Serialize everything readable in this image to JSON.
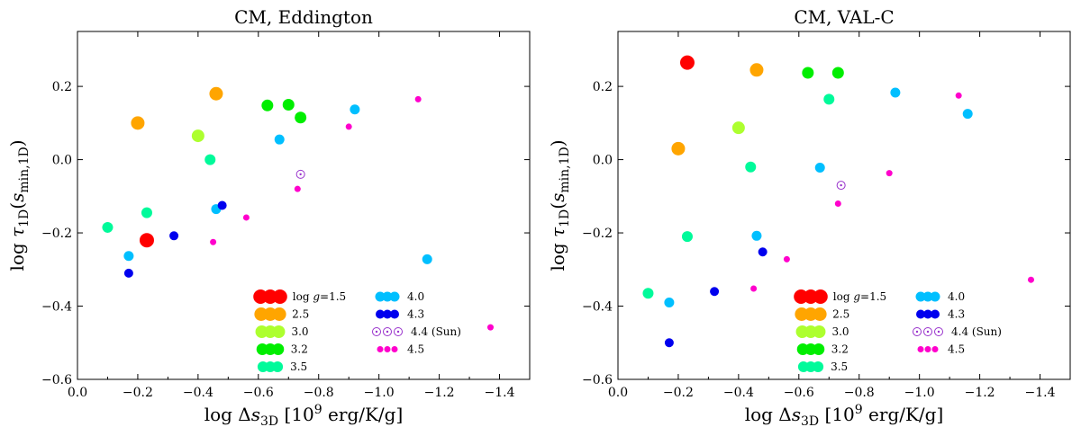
{
  "chart_data": [
    {
      "type": "scatter",
      "title": "CM, Eddington",
      "xlabel": "log Δs3D [10^9 erg/K/g]",
      "ylabel": "log τ1D(smin,1D)",
      "xlim": [
        0.0,
        -1.5
      ],
      "ylim": [
        -0.6,
        0.35
      ],
      "xticks": [
        "0.0",
        "−0.2",
        "−0.4",
        "−0.6",
        "−0.8",
        "−1.0",
        "−1.2",
        "−1.4"
      ],
      "yticks": [
        "−0.6",
        "−0.4",
        "−0.2",
        "0.0",
        "0.2"
      ],
      "series": [
        {
          "name": "log g=1.5",
          "color": "#ff0000",
          "points": [
            [
              -0.23,
              -0.22
            ]
          ]
        },
        {
          "name": "2.5",
          "color": "#ffa500",
          "points": [
            [
              -0.2,
              0.1
            ],
            [
              -0.46,
              0.18
            ]
          ]
        },
        {
          "name": "3.0",
          "color": "#adff2f",
          "points": [
            [
              -0.4,
              0.065
            ]
          ]
        },
        {
          "name": "3.2",
          "color": "#00ee00",
          "points": [
            [
              -0.63,
              0.148
            ],
            [
              -0.7,
              0.15
            ],
            [
              -0.74,
              0.115
            ]
          ]
        },
        {
          "name": "3.5",
          "color": "#00fa9a",
          "points": [
            [
              -0.1,
              -0.185
            ],
            [
              -0.23,
              -0.145
            ],
            [
              -0.44,
              0.0
            ]
          ]
        },
        {
          "name": "4.0",
          "color": "#00bfff",
          "points": [
            [
              -0.17,
              -0.263
            ],
            [
              -0.46,
              -0.135
            ],
            [
              -0.67,
              0.055
            ],
            [
              -0.92,
              0.137
            ],
            [
              -1.16,
              -0.272
            ]
          ]
        },
        {
          "name": "4.3",
          "color": "#0000ee",
          "points": [
            [
              -0.17,
              -0.31
            ],
            [
              -0.32,
              -0.208
            ],
            [
              -0.48,
              -0.125
            ]
          ]
        },
        {
          "name": "4.4 (Sun)",
          "color": "#9932cc",
          "points": [
            [
              -0.74,
              -0.04
            ]
          ]
        },
        {
          "name": "4.5",
          "color": "#ff00cc",
          "points": [
            [
              -0.45,
              -0.225
            ],
            [
              -0.56,
              -0.158
            ],
            [
              -0.73,
              -0.08
            ],
            [
              -0.9,
              0.09
            ],
            [
              -1.13,
              0.165
            ],
            [
              -1.37,
              -0.458
            ]
          ]
        }
      ]
    },
    {
      "type": "scatter",
      "title": "CM, VAL-C",
      "xlabel": "log Δs3D [10^9 erg/K/g]",
      "ylabel": "log τ1D(smin,1D)",
      "xlim": [
        0.0,
        -1.5
      ],
      "ylim": [
        -0.6,
        0.35
      ],
      "xticks": [
        "0.0",
        "−0.2",
        "−0.4",
        "−0.6",
        "−0.8",
        "−1.0",
        "−1.2",
        "−1.4"
      ],
      "yticks": [
        "−0.6",
        "−0.4",
        "−0.2",
        "0.0",
        "0.2"
      ],
      "series": [
        {
          "name": "log g=1.5",
          "color": "#ff0000",
          "points": [
            [
              -0.23,
              0.265
            ]
          ]
        },
        {
          "name": "2.5",
          "color": "#ffa500",
          "points": [
            [
              -0.2,
              0.03
            ],
            [
              -0.46,
              0.245
            ]
          ]
        },
        {
          "name": "3.0",
          "color": "#adff2f",
          "points": [
            [
              -0.4,
              0.087
            ]
          ]
        },
        {
          "name": "3.2",
          "color": "#00ee00",
          "points": [
            [
              -0.63,
              0.237
            ],
            [
              -0.73,
              0.237
            ]
          ]
        },
        {
          "name": "3.5",
          "color": "#00fa9a",
          "points": [
            [
              -0.1,
              -0.365
            ],
            [
              -0.23,
              -0.21
            ],
            [
              -0.44,
              -0.02
            ],
            [
              -0.7,
              0.165
            ]
          ]
        },
        {
          "name": "4.0",
          "color": "#00bfff",
          "points": [
            [
              -0.17,
              -0.39
            ],
            [
              -0.46,
              -0.208
            ],
            [
              -0.67,
              -0.022
            ],
            [
              -0.92,
              0.183
            ],
            [
              -1.16,
              0.125
            ]
          ]
        },
        {
          "name": "4.3",
          "color": "#0000ee",
          "points": [
            [
              -0.17,
              -0.5
            ],
            [
              -0.32,
              -0.36
            ],
            [
              -0.48,
              -0.252
            ]
          ]
        },
        {
          "name": "4.4 (Sun)",
          "color": "#9932cc",
          "points": [
            [
              -0.74,
              -0.07
            ]
          ]
        },
        {
          "name": "4.5",
          "color": "#ff00cc",
          "points": [
            [
              -0.45,
              -0.352
            ],
            [
              -0.56,
              -0.272
            ],
            [
              -0.73,
              -0.12
            ],
            [
              -0.9,
              -0.037
            ],
            [
              -1.13,
              0.175
            ],
            [
              -1.37,
              -0.328
            ]
          ]
        }
      ]
    }
  ]
}
